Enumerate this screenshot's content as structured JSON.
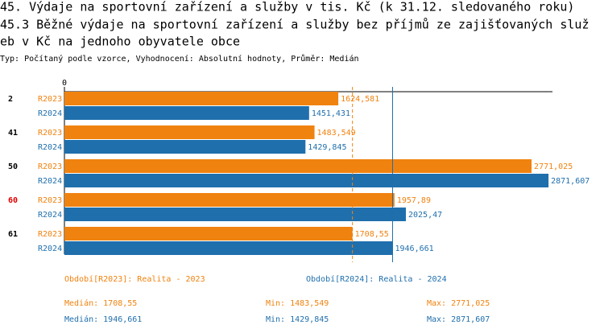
{
  "chart_data": {
    "type": "bar",
    "orientation": "horizontal",
    "title": "45. Výdaje na sportovní zařízení a služby v tis. Kč (k 31.12. sledovaného roku)",
    "subtitle_lines": [
      "45.3 Běžné výdaje na sportovní zařízení a služby bez příjmů ze zajišťovaných služ",
      "eb v Kč na jednoho obyvatele obce"
    ],
    "info": "Typ: Počítaný podle vzorce, Vyhodnocení: Absolutní hodnoty, Průměr: Medián",
    "categories": [
      "2",
      "41",
      "50",
      "60",
      "61"
    ],
    "highlight": {
      "category": 3,
      "color": "#e00000"
    },
    "xlim": [
      0,
      2895
    ],
    "xticks": [
      0
    ],
    "stat_labels": {
      "median": "Medián:",
      "min": "Min:",
      "max": "Max:"
    },
    "series": [
      {
        "name": "R2023",
        "legend": "Období[R2023]: Realita - 2023",
        "color": "#f0820f",
        "median_style": "dashed",
        "values": [
          1624.581,
          1483.549,
          2771.025,
          1957.89,
          1708.55
        ],
        "value_labels": [
          "1624,581",
          "1483,549",
          "2771,025",
          "1957,89",
          "1708,55"
        ],
        "median": 1708.55,
        "median_label": "1708,55",
        "min": 1483.549,
        "min_label": "1483,549",
        "max": 2771.025,
        "max_label": "2771,025"
      },
      {
        "name": "R2024",
        "legend": "Období[R2024]: Realita - 2024",
        "color": "#1f6fad",
        "median_style": "solid",
        "values": [
          1451.431,
          1429.845,
          2871.607,
          2025.47,
          1946.661
        ],
        "value_labels": [
          "1451,431",
          "1429,845",
          "2871,607",
          "2025,47",
          "1946,661"
        ],
        "median": 1946.661,
        "median_label": "1946,661",
        "min": 1429.845,
        "min_label": "1429,845",
        "max": 2871.607,
        "max_label": "2871,607"
      }
    ]
  }
}
